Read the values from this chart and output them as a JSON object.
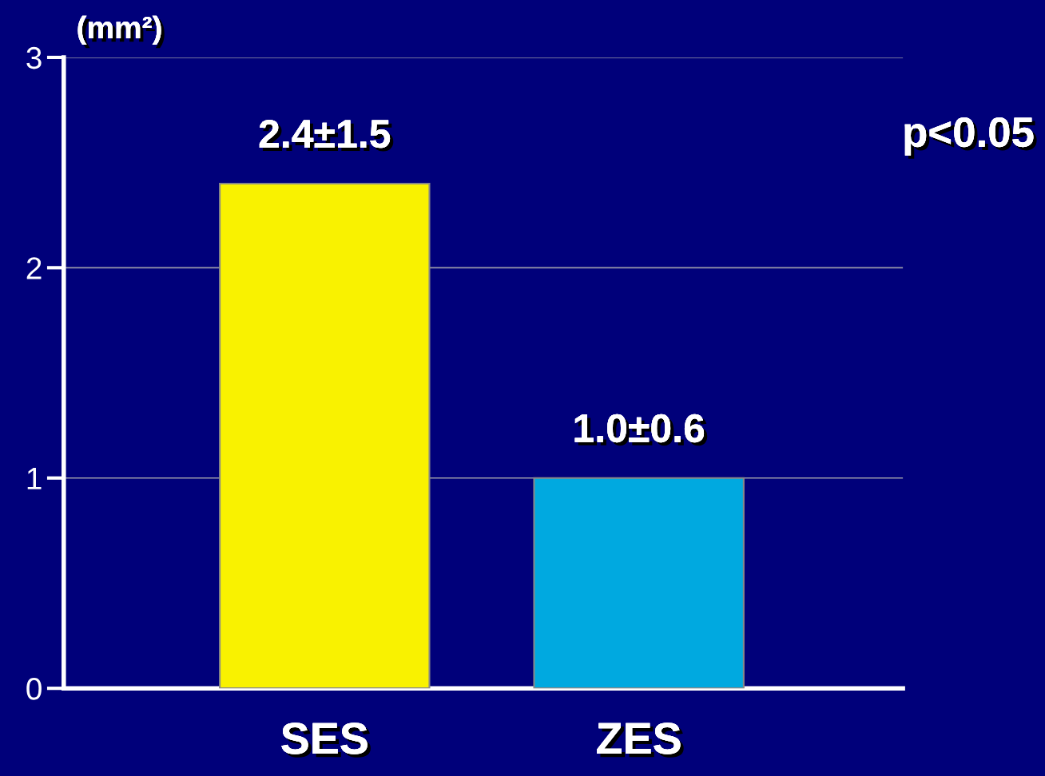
{
  "chart_data": {
    "type": "bar",
    "categories": [
      "SES",
      "ZES"
    ],
    "series": [
      {
        "colors": [
          "#f9f200",
          "#00a9e0"
        ],
        "values": [
          2.4,
          1.0
        ],
        "value_labels": [
          "2.4±1.5",
          "1.0±0.6"
        ]
      }
    ],
    "ylabel": "(mm²)",
    "ylim": [
      0,
      3
    ],
    "yticks": [
      0,
      1,
      2,
      3
    ],
    "grid": "y",
    "legend": false,
    "annotations": [
      "p<0.05"
    ]
  }
}
